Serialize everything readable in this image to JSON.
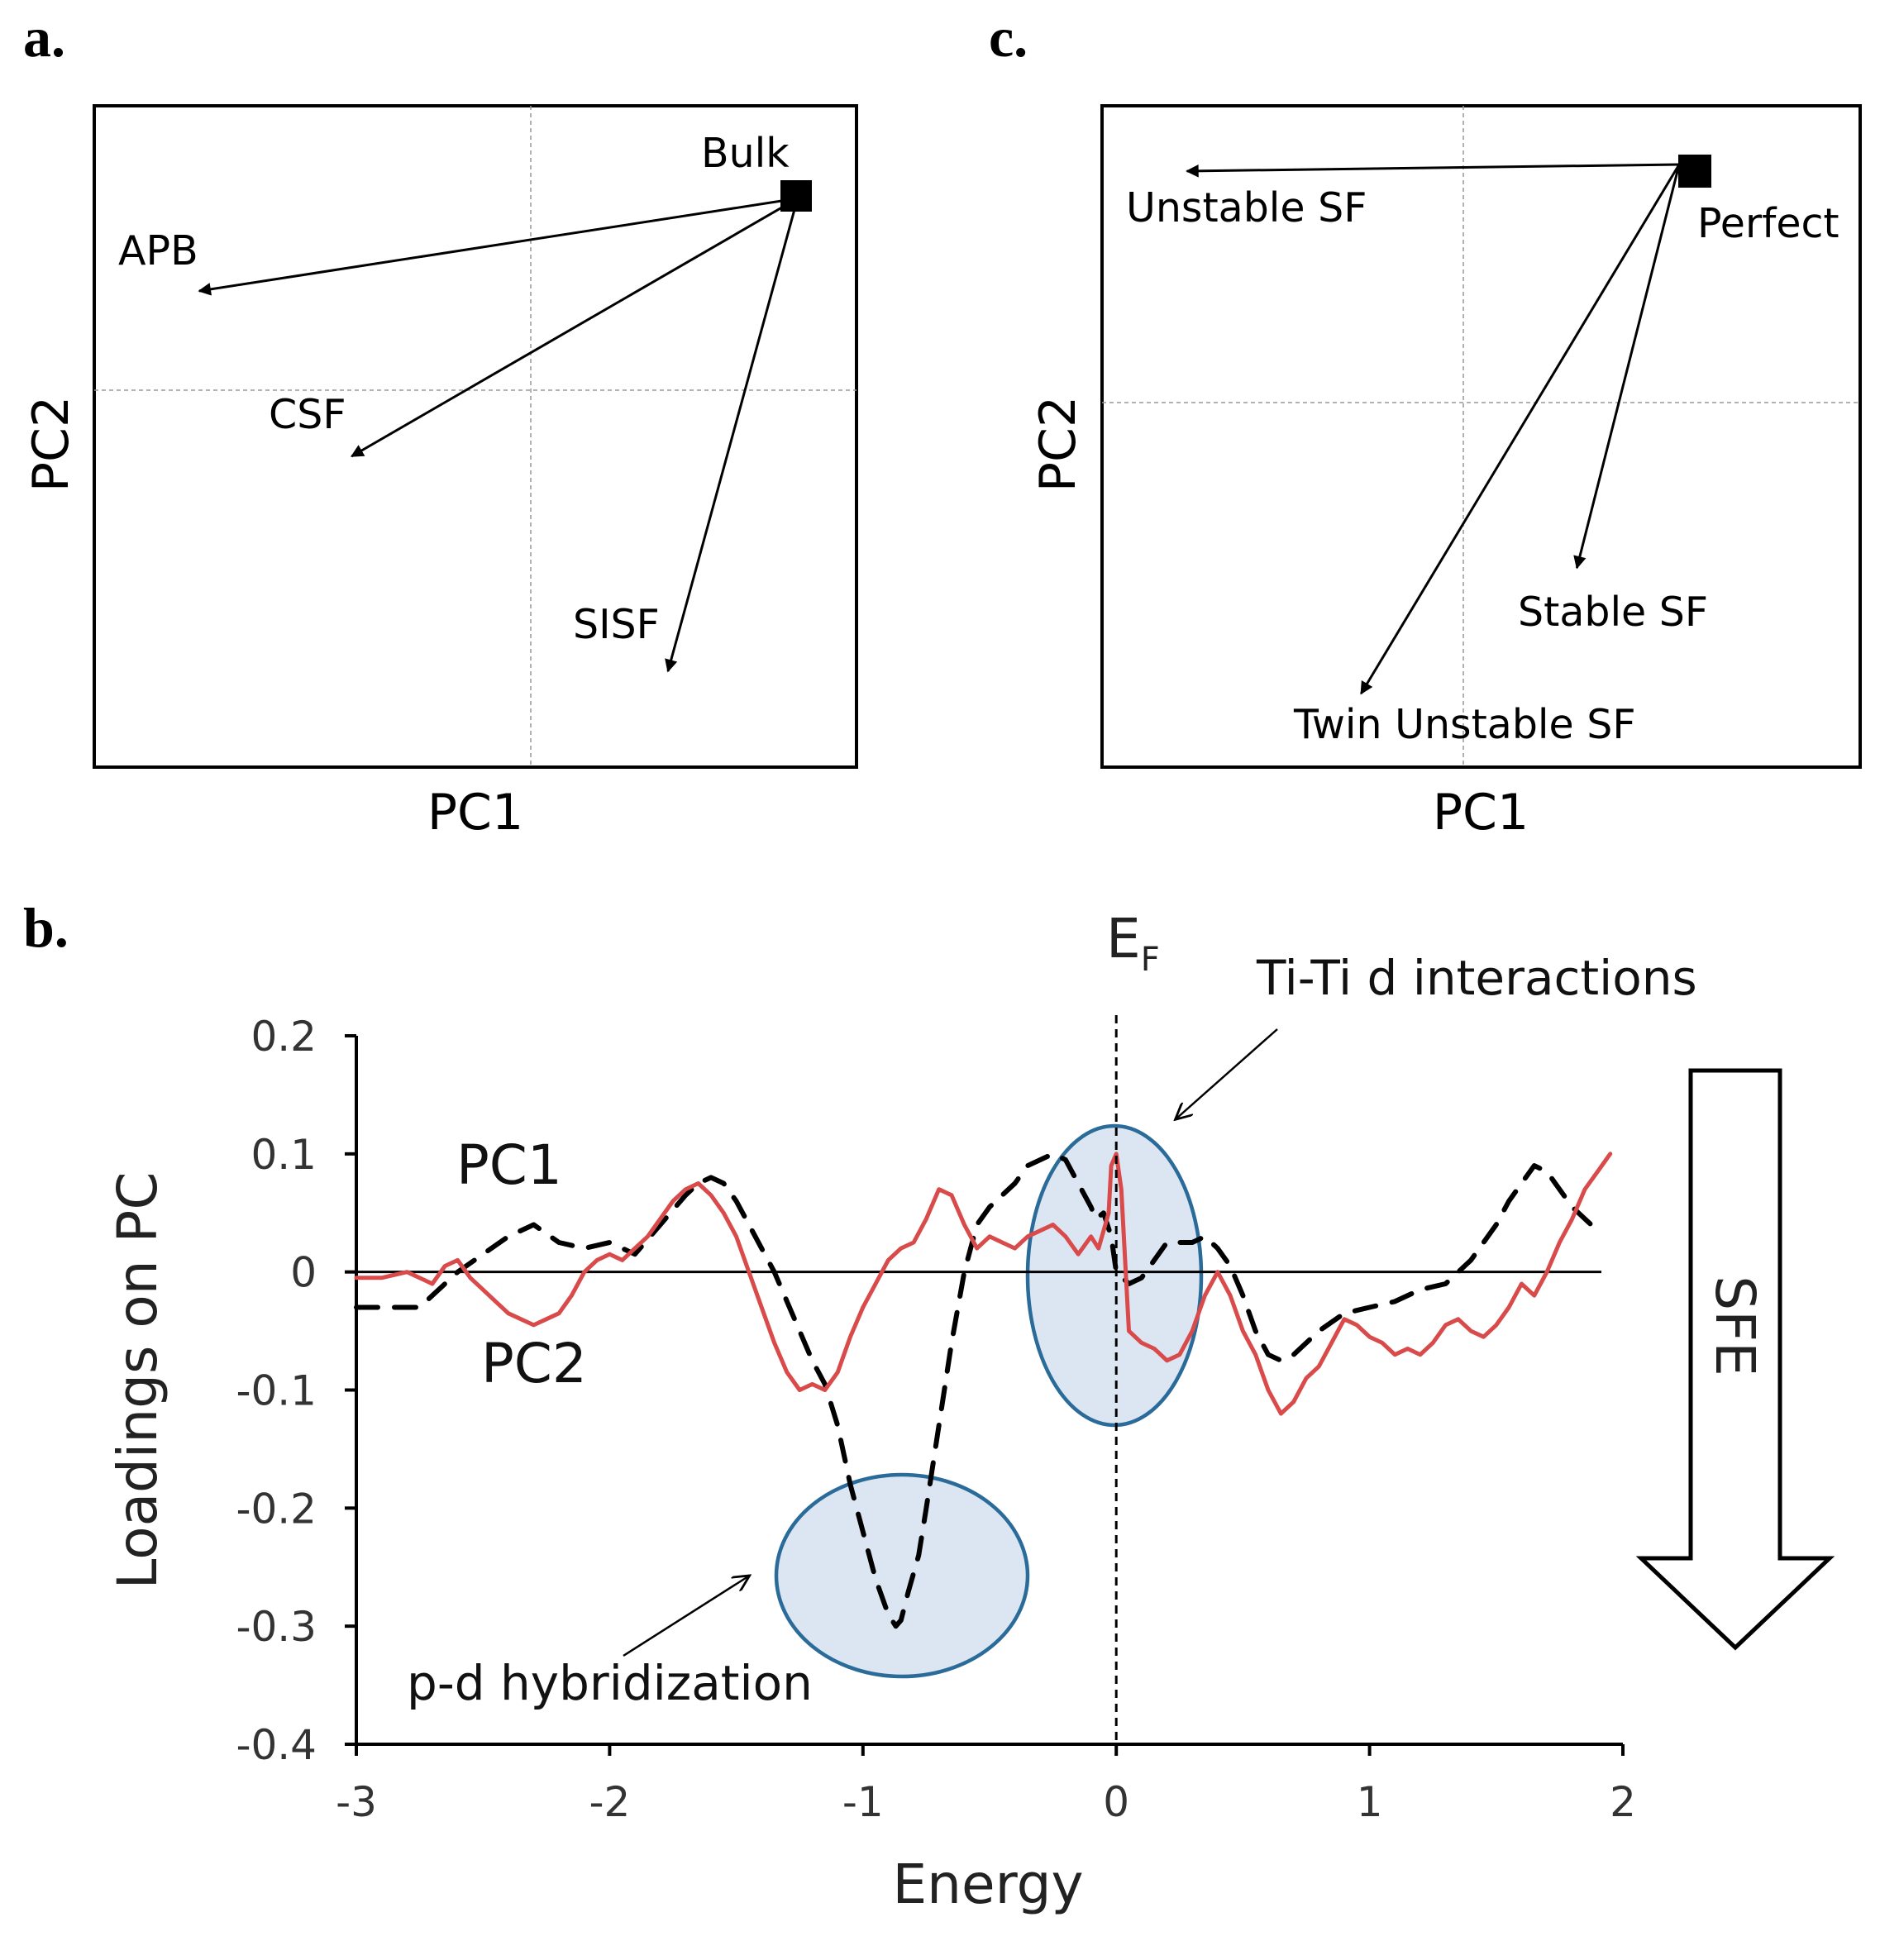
{
  "chart_data": [
    {
      "panel": "a.",
      "type": "scatter",
      "xlabel": "PC1",
      "ylabel": "PC2",
      "xlim": [
        -1,
        1
      ],
      "ylim": [
        -1,
        1
      ],
      "grid": "crosshair at origin",
      "origin": {
        "name": "Bulk",
        "x": 0.7,
        "y": 0.58
      },
      "points": [
        {
          "name": "APB",
          "x": -0.87,
          "y": 0.3
        },
        {
          "name": "CSF",
          "x": -0.47,
          "y": -0.2
        },
        {
          "name": "SISF",
          "x": 0.36,
          "y": -0.85
        }
      ]
    },
    {
      "panel": "c.",
      "type": "scatter",
      "xlabel": "PC1",
      "ylabel": "PC2",
      "xlim": [
        -1,
        1
      ],
      "ylim": [
        -1,
        1
      ],
      "grid": "crosshair at origin",
      "origin": {
        "name": "Perfect",
        "x": 0.57,
        "y": 0.72
      },
      "points": [
        {
          "name": "Unstable SF",
          "x": -0.73,
          "y": 0.7
        },
        {
          "name": "Stable SF",
          "x": 0.3,
          "y": -0.5
        },
        {
          "name": "Twin Unstable SF",
          "x": -0.27,
          "y": -0.88
        }
      ]
    },
    {
      "panel": "b.",
      "type": "line",
      "xlabel": "Energy",
      "ylabel": "Loadings on PC",
      "xlim": [
        -3,
        2
      ],
      "ylim": [
        -0.4,
        0.2
      ],
      "xticks": [
        "-3",
        "-2",
        "-1",
        "0",
        "1",
        "2"
      ],
      "yticks": [
        "0.2",
        "0.1",
        "0",
        "-0.1",
        "-0.2",
        "-0.3",
        "-0.4"
      ],
      "fermi_level": {
        "label": "E",
        "subscript": "F",
        "x": 0
      },
      "series": [
        {
          "name": "PC1",
          "color": "#000000",
          "style": "dashed",
          "x": [
            -3.0,
            -2.85,
            -2.75,
            -2.7,
            -2.6,
            -2.5,
            -2.4,
            -2.3,
            -2.2,
            -2.1,
            -2.0,
            -1.9,
            -1.8,
            -1.7,
            -1.65,
            -1.6,
            -1.55,
            -1.5,
            -1.45,
            -1.4,
            -1.35,
            -1.3,
            -1.25,
            -1.2,
            -1.15,
            -1.1,
            -1.05,
            -1.0,
            -0.95,
            -0.9,
            -0.87,
            -0.85,
            -0.82,
            -0.78,
            -0.75,
            -0.7,
            -0.65,
            -0.6,
            -0.55,
            -0.5,
            -0.4,
            -0.35,
            -0.3,
            -0.25,
            -0.2,
            -0.15,
            -0.1,
            -0.08,
            -0.05,
            -0.02,
            0.0,
            0.05,
            0.1,
            0.15,
            0.2,
            0.25,
            0.3,
            0.35,
            0.4,
            0.45,
            0.5,
            0.55,
            0.6,
            0.65,
            0.7,
            0.8,
            0.9,
            1.0,
            1.1,
            1.2,
            1.3,
            1.4,
            1.5,
            1.55,
            1.6,
            1.65,
            1.7,
            1.75,
            1.8,
            1.85,
            1.9
          ],
          "y": [
            -0.03,
            -0.03,
            -0.03,
            -0.02,
            0.0,
            0.015,
            0.03,
            0.04,
            0.025,
            0.02,
            0.025,
            0.015,
            0.04,
            0.065,
            0.075,
            0.08,
            0.075,
            0.06,
            0.04,
            0.02,
            0.0,
            -0.025,
            -0.05,
            -0.075,
            -0.095,
            -0.13,
            -0.18,
            -0.22,
            -0.26,
            -0.29,
            -0.3,
            -0.295,
            -0.27,
            -0.24,
            -0.2,
            -0.13,
            -0.06,
            0.0,
            0.04,
            0.055,
            0.075,
            0.09,
            0.095,
            0.1,
            0.095,
            0.075,
            0.055,
            0.045,
            0.05,
            0.03,
            0.0,
            -0.01,
            -0.005,
            0.01,
            0.025,
            0.025,
            0.025,
            0.03,
            0.02,
            0.005,
            -0.02,
            -0.05,
            -0.07,
            -0.075,
            -0.07,
            -0.05,
            -0.035,
            -0.03,
            -0.025,
            -0.015,
            -0.01,
            0.01,
            0.04,
            0.06,
            0.075,
            0.09,
            0.085,
            0.07,
            0.055,
            0.045,
            0.035
          ]
        },
        {
          "name": "PC2",
          "color": "#d94a4a",
          "style": "solid",
          "x": [
            -3.0,
            -2.9,
            -2.8,
            -2.7,
            -2.65,
            -2.6,
            -2.55,
            -2.5,
            -2.45,
            -2.4,
            -2.35,
            -2.3,
            -2.25,
            -2.2,
            -2.15,
            -2.1,
            -2.05,
            -2.0,
            -1.95,
            -1.9,
            -1.85,
            -1.8,
            -1.75,
            -1.7,
            -1.65,
            -1.6,
            -1.55,
            -1.5,
            -1.45,
            -1.4,
            -1.35,
            -1.3,
            -1.25,
            -1.2,
            -1.15,
            -1.1,
            -1.05,
            -1.0,
            -0.95,
            -0.9,
            -0.85,
            -0.8,
            -0.75,
            -0.7,
            -0.65,
            -0.6,
            -0.55,
            -0.5,
            -0.45,
            -0.4,
            -0.35,
            -0.3,
            -0.25,
            -0.2,
            -0.15,
            -0.1,
            -0.07,
            -0.05,
            -0.03,
            -0.02,
            0.0,
            0.02,
            0.05,
            0.1,
            0.15,
            0.2,
            0.25,
            0.3,
            0.35,
            0.4,
            0.45,
            0.5,
            0.55,
            0.6,
            0.65,
            0.7,
            0.75,
            0.8,
            0.85,
            0.9,
            0.95,
            1.0,
            1.05,
            1.1,
            1.15,
            1.2,
            1.25,
            1.3,
            1.35,
            1.4,
            1.45,
            1.5,
            1.55,
            1.6,
            1.65,
            1.7,
            1.75,
            1.8,
            1.85,
            1.9,
            1.95
          ],
          "y": [
            -0.005,
            -0.005,
            0.0,
            -0.01,
            0.005,
            0.01,
            -0.005,
            -0.015,
            -0.025,
            -0.035,
            -0.04,
            -0.045,
            -0.04,
            -0.035,
            -0.02,
            0.0,
            0.01,
            0.015,
            0.01,
            0.02,
            0.03,
            0.045,
            0.06,
            0.07,
            0.075,
            0.065,
            0.05,
            0.03,
            0.0,
            -0.03,
            -0.06,
            -0.085,
            -0.1,
            -0.095,
            -0.1,
            -0.085,
            -0.055,
            -0.03,
            -0.01,
            0.01,
            0.02,
            0.025,
            0.045,
            0.07,
            0.065,
            0.04,
            0.02,
            0.03,
            0.025,
            0.02,
            0.03,
            0.035,
            0.04,
            0.03,
            0.015,
            0.03,
            0.02,
            0.035,
            0.05,
            0.09,
            0.1,
            0.07,
            -0.05,
            -0.06,
            -0.065,
            -0.075,
            -0.07,
            -0.05,
            -0.02,
            0.0,
            -0.02,
            -0.05,
            -0.07,
            -0.1,
            -0.12,
            -0.11,
            -0.09,
            -0.08,
            -0.06,
            -0.04,
            -0.045,
            -0.055,
            -0.06,
            -0.07,
            -0.065,
            -0.07,
            -0.06,
            -0.045,
            -0.04,
            -0.05,
            -0.055,
            -0.045,
            -0.03,
            -0.01,
            -0.02,
            0.0,
            0.025,
            0.045,
            0.07,
            0.085,
            0.1
          ]
        }
      ],
      "annotations": [
        {
          "text": "Ti-Ti d interactions",
          "target": "ellipse at E_F"
        },
        {
          "text": "p-d hybridization",
          "target": "ellipse near -0.85 eV"
        }
      ],
      "side_arrow": {
        "label": "SFE",
        "direction": "down"
      }
    }
  ]
}
